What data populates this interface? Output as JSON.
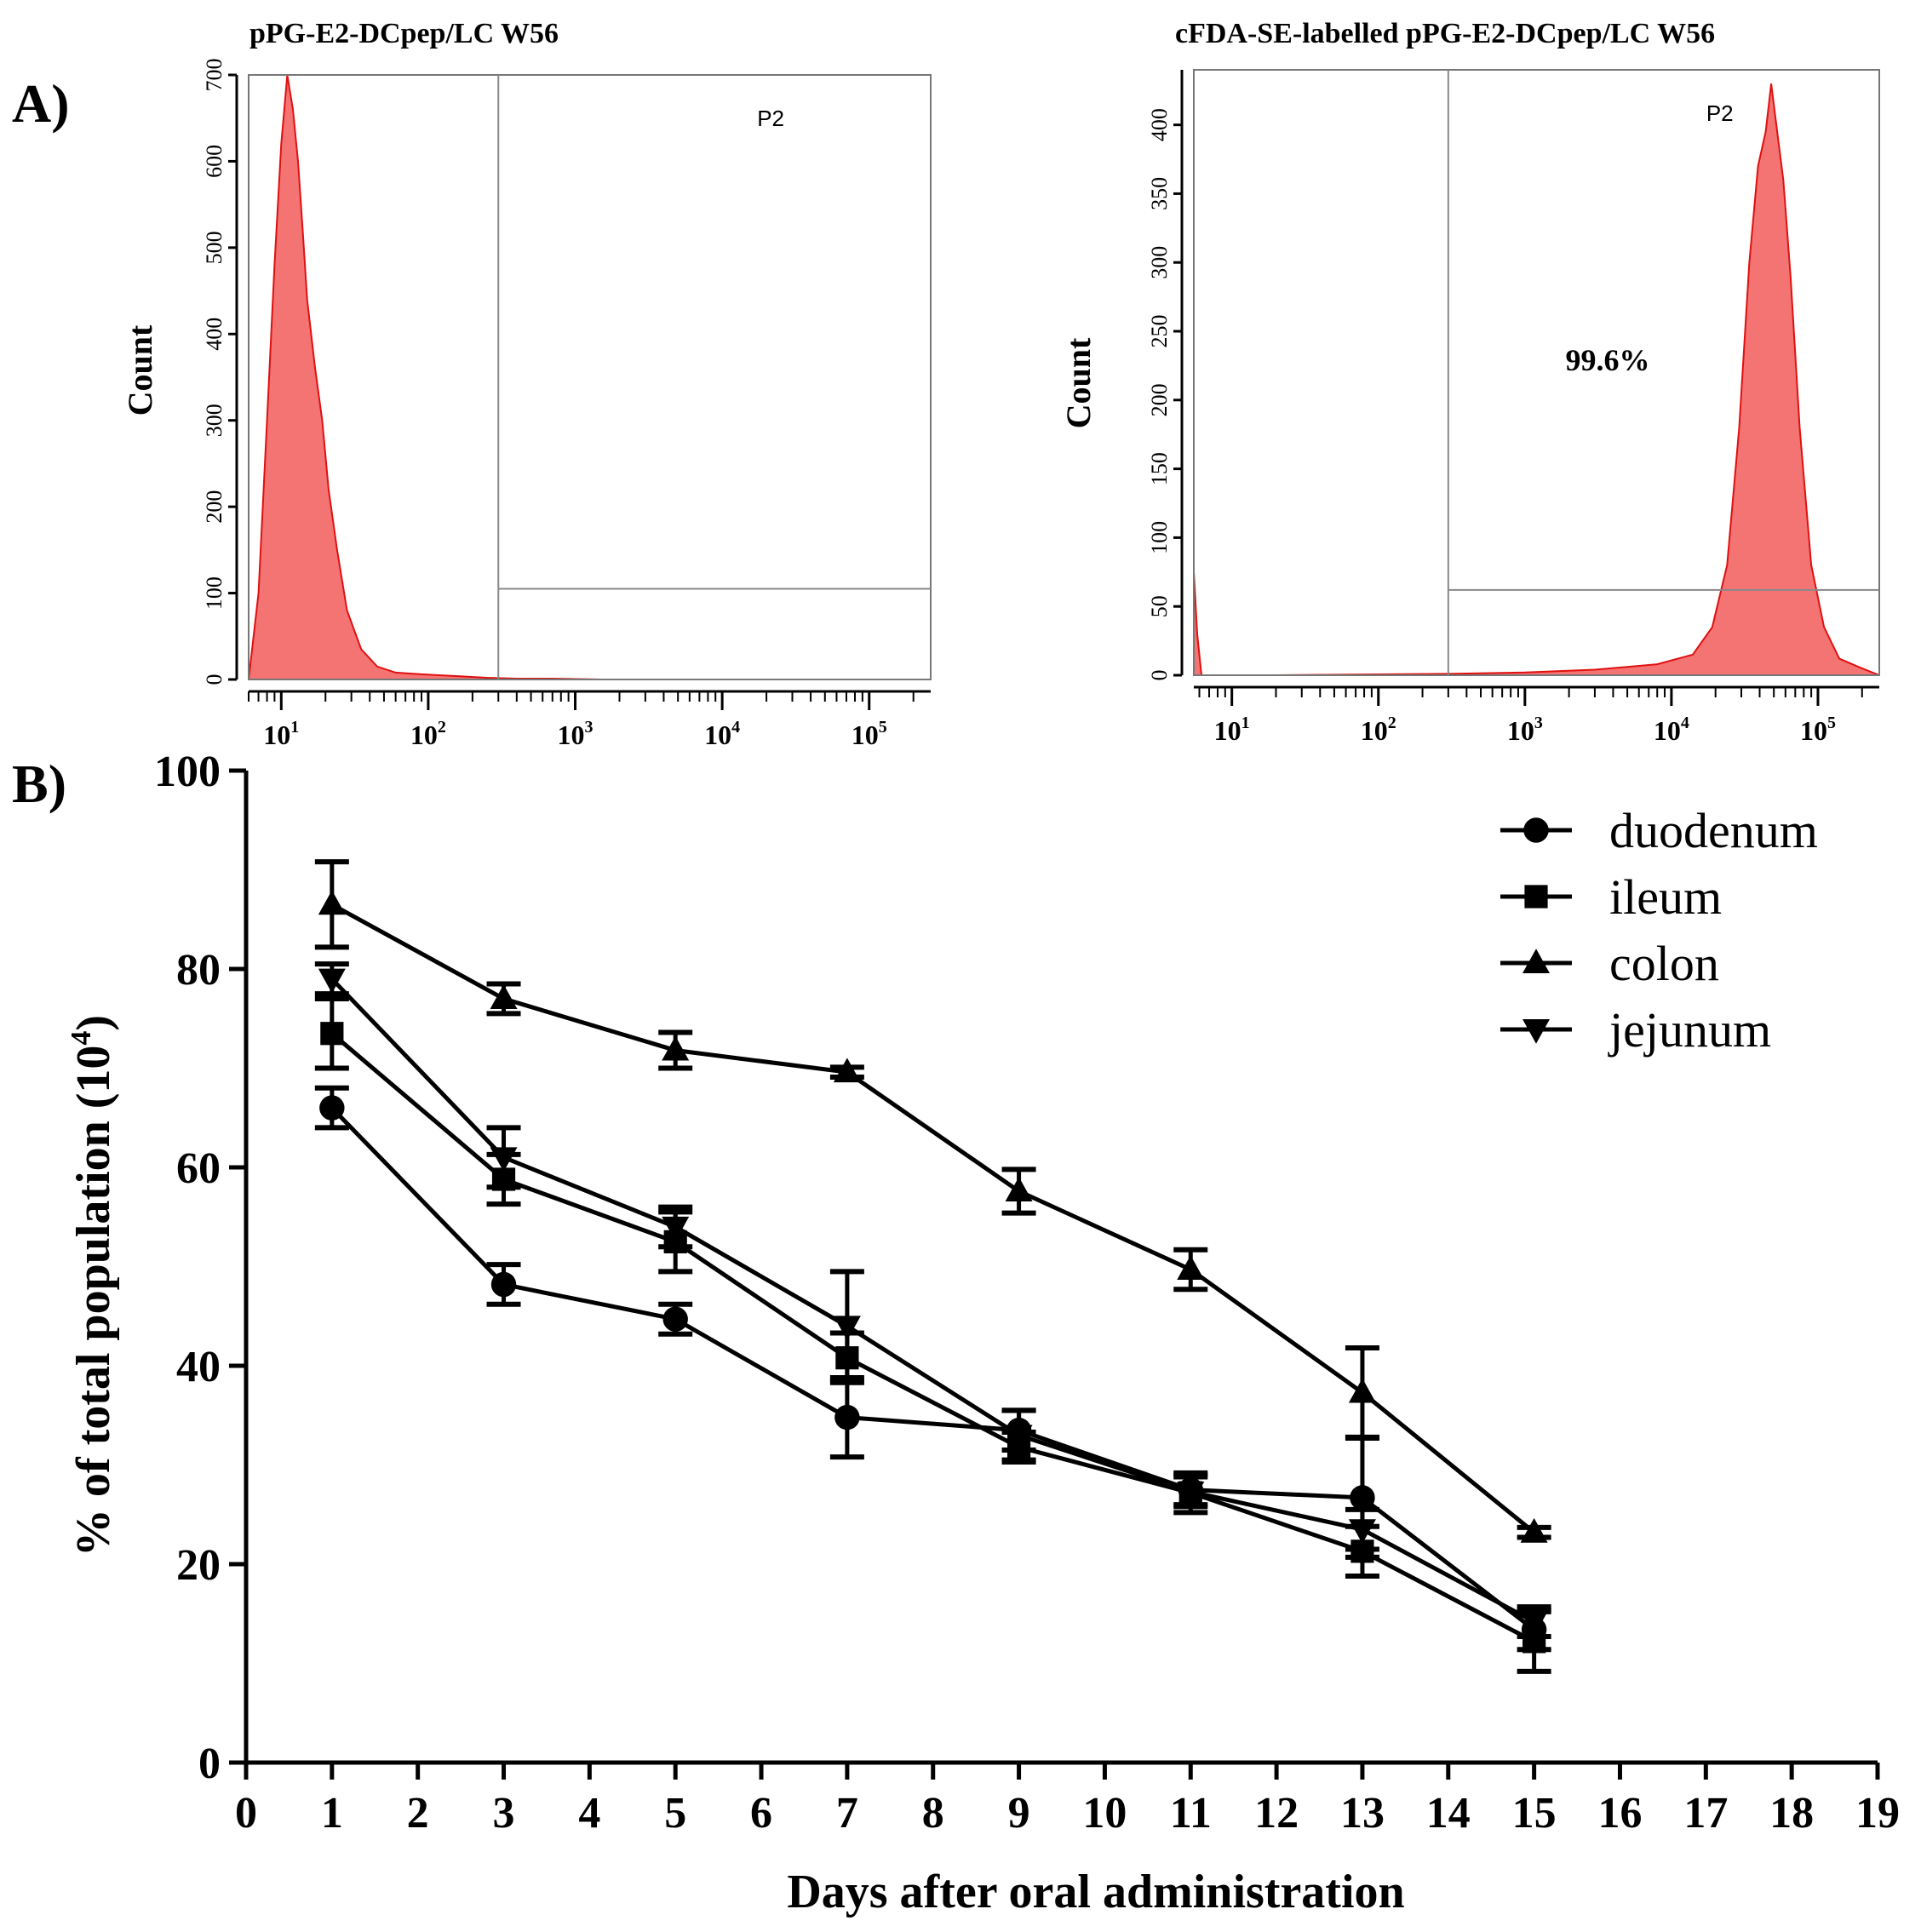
{
  "panels": {
    "a_label": "A)",
    "b_label": "B)"
  },
  "chart_data": [
    {
      "type": "area",
      "title": "pPG-E2-DCpep/LC W56",
      "ylabel": "Count",
      "x_scale": "log",
      "xlim": [
        6,
        262144
      ],
      "ylim": [
        0,
        700
      ],
      "yticks": [
        0,
        100,
        200,
        300,
        400,
        500,
        600,
        700
      ],
      "xticks": [
        10,
        100,
        1000,
        10000,
        100000
      ],
      "xtick_labels": [
        {
          "base": "10",
          "exp": "1"
        },
        {
          "base": "10",
          "exp": "2"
        },
        {
          "base": "10",
          "exp": "3"
        },
        {
          "base": "10",
          "exp": "4"
        },
        {
          "base": "10",
          "exp": "5"
        }
      ],
      "gate": {
        "label": "P2",
        "x_start": 300,
        "level": 105
      },
      "histogram": {
        "x": [
          6,
          7,
          8,
          9,
          10,
          11,
          12,
          13,
          14,
          15,
          17,
          19,
          21,
          24,
          28,
          35,
          45,
          60,
          90,
          150,
          250,
          400,
          700,
          1500,
          262144
        ],
        "y": [
          0,
          100,
          300,
          480,
          620,
          700,
          660,
          600,
          520,
          440,
          360,
          300,
          220,
          150,
          80,
          35,
          15,
          8,
          6,
          4,
          2,
          1,
          1,
          0,
          0
        ]
      },
      "color": "#f25a5a"
    },
    {
      "type": "area",
      "title": "cFDA-SE-labelled pPG-E2-DCpep/LC W56",
      "ylabel": "Count",
      "annotation": "99.6%",
      "x_scale": "log",
      "xlim": [
        5.5,
        262144
      ],
      "ylim": [
        0,
        440
      ],
      "yticks": [
        0,
        50,
        100,
        150,
        200,
        250,
        300,
        350,
        400
      ],
      "xticks": [
        10,
        100,
        1000,
        10000,
        100000
      ],
      "xtick_labels": [
        {
          "base": "10",
          "exp": "1"
        },
        {
          "base": "10",
          "exp": "2"
        },
        {
          "base": "10",
          "exp": "3"
        },
        {
          "base": "10",
          "exp": "4"
        },
        {
          "base": "10",
          "exp": "5"
        }
      ],
      "gate": {
        "label": "P2",
        "x_start": 300,
        "level": 62
      },
      "histogram": {
        "x": [
          5.5,
          5.8,
          6.2,
          7,
          20,
          300,
          1000,
          3000,
          8000,
          14000,
          19000,
          24000,
          29000,
          34000,
          39000,
          44000,
          48000,
          52000,
          58000,
          65000,
          75000,
          90000,
          110000,
          140000,
          190000,
          262144
        ],
        "y": [
          75,
          30,
          0,
          0,
          0,
          1,
          2,
          4,
          8,
          15,
          35,
          80,
          180,
          300,
          370,
          395,
          430,
          400,
          360,
          290,
          180,
          80,
          35,
          12,
          6,
          0
        ]
      },
      "color": "#f25a5a"
    },
    {
      "type": "line",
      "xlabel": "Days after oral administration",
      "ylabel": "% of total population (10",
      "ylabel_exp": "4",
      "ylabel_close": ")",
      "xlim": [
        0,
        19
      ],
      "ylim": [
        0,
        100
      ],
      "xticks": [
        0,
        1,
        2,
        3,
        4,
        5,
        6,
        7,
        8,
        9,
        10,
        11,
        12,
        13,
        14,
        15,
        16,
        17,
        18,
        19
      ],
      "yticks": [
        0,
        20,
        40,
        60,
        80,
        100
      ],
      "x": [
        1,
        3,
        5,
        7,
        9,
        11,
        13,
        15
      ],
      "legend_position": "top-right",
      "series": [
        {
          "name": "duodenum",
          "marker": "circle",
          "values": [
            66,
            48.2,
            44.7,
            34.8,
            33.5,
            27.5,
            26.7,
            13.4
          ],
          "errors": [
            2.0,
            2.0,
            1.5,
            4.0,
            2.0,
            1.5,
            6.0,
            2.0
          ]
        },
        {
          "name": "ileum",
          "marker": "square",
          "values": [
            73.5,
            58.8,
            52.5,
            40.8,
            31.8,
            27.2,
            21.3,
            12.2
          ],
          "errors": [
            3.5,
            2.5,
            3.0,
            2.5,
            1.5,
            2.0,
            2.5,
            3.0
          ]
        },
        {
          "name": "colon",
          "marker": "triangle-up",
          "values": [
            86.5,
            77,
            71.8,
            69.6,
            57.6,
            49.7,
            37.3,
            23.2
          ],
          "errors": [
            4.3,
            1.5,
            1.8,
            0.5,
            2.2,
            2.0,
            4.5,
            0.5
          ]
        },
        {
          "name": "jejunum",
          "marker": "triangle-down",
          "values": [
            79,
            61,
            54,
            44,
            33,
            27.3,
            23.5,
            14.2
          ],
          "errors": [
            1.5,
            3.0,
            2.0,
            5.5,
            2.5,
            1.5,
            2.0,
            1.5
          ]
        }
      ]
    }
  ]
}
